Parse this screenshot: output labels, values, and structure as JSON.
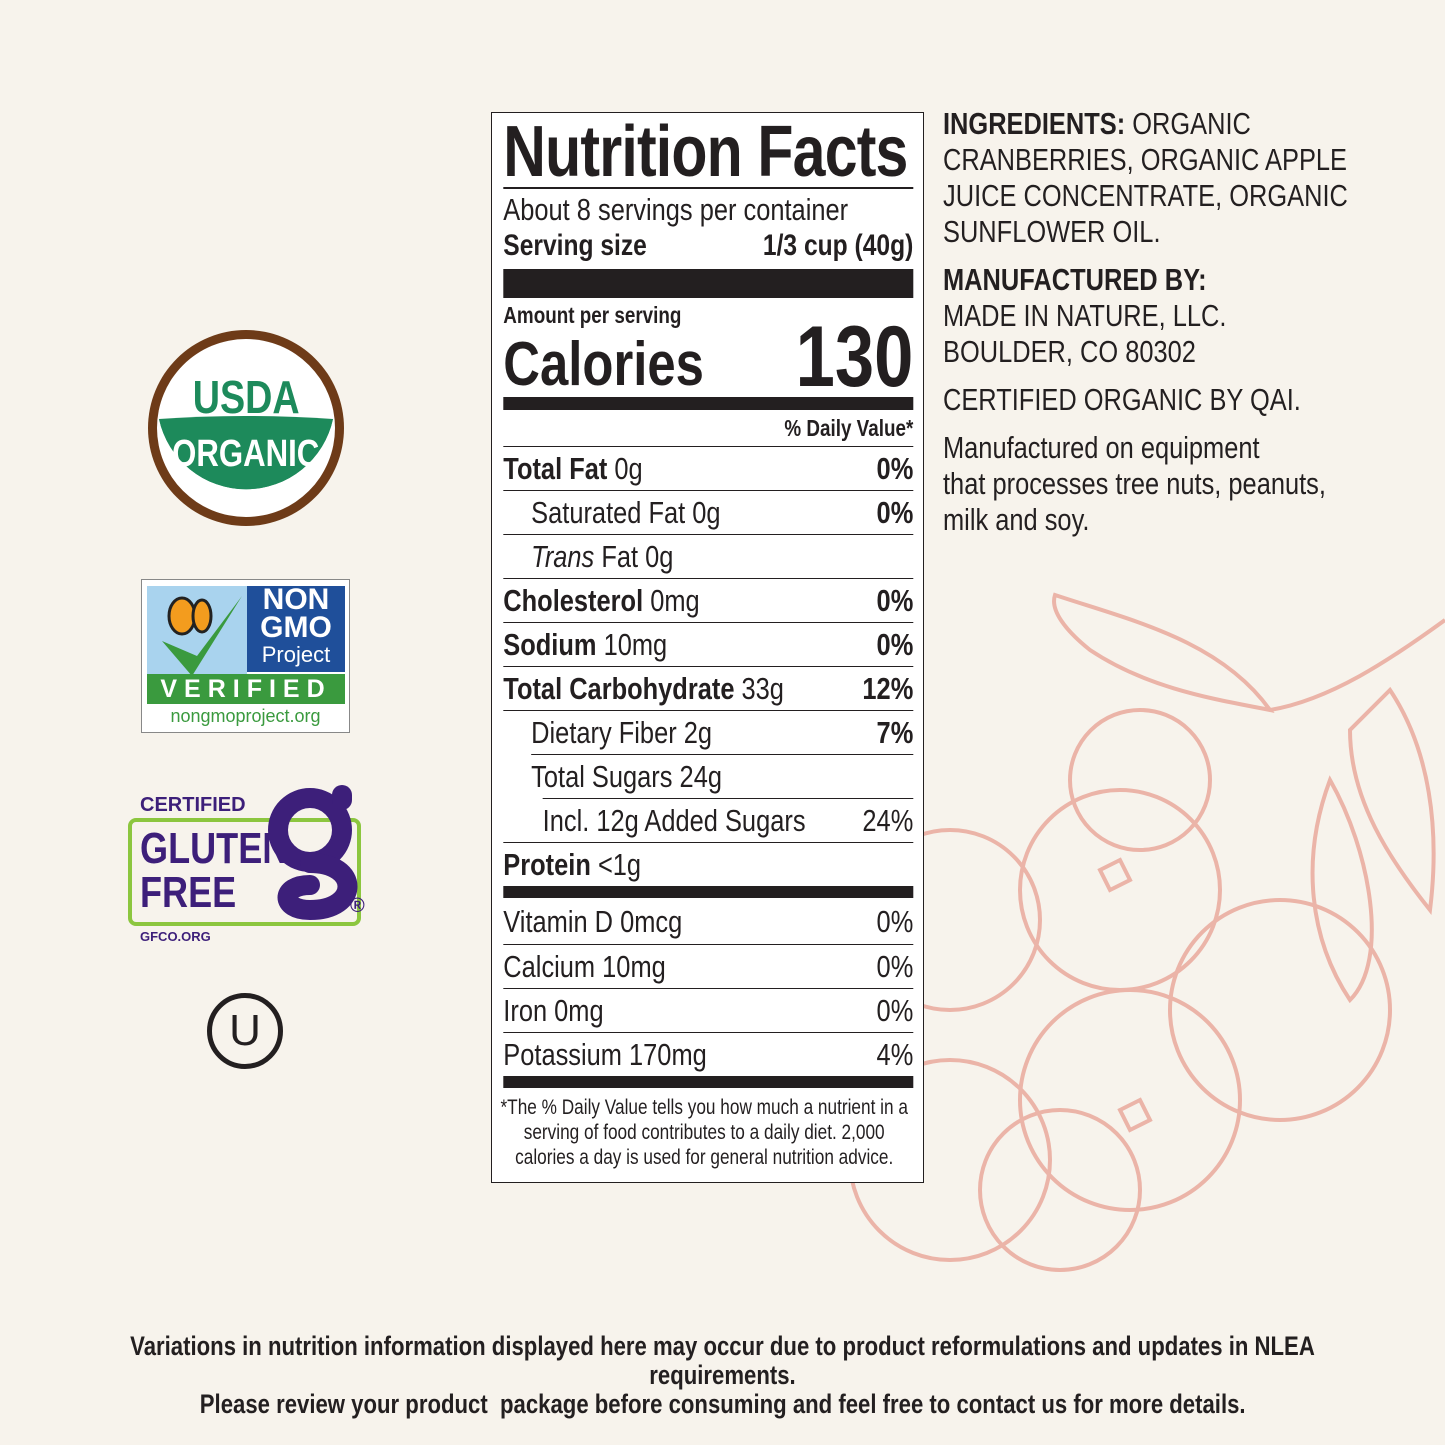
{
  "nutrition_facts": {
    "title": "Nutrition Facts",
    "servings_per_container": "About 8 servings per container",
    "serving_size_label": "Serving size",
    "serving_size_value": "1/3 cup (40g)",
    "amount_per_serving": "Amount per serving",
    "calories_label": "Calories",
    "calories_value": "130",
    "daily_value_header": "% Daily Value*",
    "nutrients": [
      {
        "name": "Total Fat",
        "amount": "0g",
        "dv": "0%"
      },
      {
        "name": "Saturated Fat",
        "amount": "0g",
        "dv": "0%"
      },
      {
        "name_italic": "Trans",
        "name": "Fat",
        "amount": "0g",
        "dv": ""
      },
      {
        "name": "Cholesterol",
        "amount": "0mg",
        "dv": "0%"
      },
      {
        "name": "Sodium",
        "amount": "10mg",
        "dv": "0%"
      },
      {
        "name": "Total Carbohydrate",
        "amount": "33g",
        "dv": "12%"
      },
      {
        "name": "Dietary Fiber",
        "amount": "2g",
        "dv": "7%"
      },
      {
        "name": "Total Sugars",
        "amount": "24g",
        "dv": ""
      },
      {
        "name": "Incl. 12g Added Sugars",
        "amount": "",
        "dv": "24%"
      },
      {
        "name": "Protein",
        "amount": "<1g",
        "dv": ""
      }
    ],
    "vitamins": [
      {
        "name": "Vitamin D 0mcg",
        "dv": "0%"
      },
      {
        "name": "Calcium 10mg",
        "dv": "0%"
      },
      {
        "name": "Iron 0mg",
        "dv": "0%"
      },
      {
        "name": "Potassium 170mg",
        "dv": "4%"
      }
    ],
    "footnote": "*The % Daily Value tells you how much a nutrient in a serving of food contributes to a daily diet. 2,000 calories a day is used for general nutrition advice."
  },
  "ingredients": {
    "label": "INGREDIENTS:",
    "text": "ORGANIC CRANBERRIES, ORGANIC APPLE JUICE CONCENTRATE, ORGANIC SUNFLOWER OIL.",
    "lines": [
      "ORGANIC",
      "CRANBERRIES, ORGANIC APPLE",
      "JUICE CONCENTRATE, ORGANIC",
      "SUNFLOWER OIL."
    ]
  },
  "manufacturer": {
    "label": "MANUFACTURED BY:",
    "lines": [
      "MADE IN NATURE, LLC.",
      "BOULDER, CO 80302"
    ]
  },
  "certification": "CERTIFIED ORGANIC BY QAI.",
  "allergen_lines": [
    "Manufactured on equipment",
    "that processes tree nuts, peanuts,",
    "milk and soy."
  ],
  "badges": {
    "usda": {
      "line1": "USDA",
      "line2": "ORGANIC"
    },
    "non_gmo": {
      "line1": "NON",
      "line2": "GMO",
      "line3": "Project",
      "verified": "VERIFIED",
      "url": "nongmoproject.org"
    },
    "gluten_free": {
      "certified": "CERTIFIED",
      "line1": "GLUTEN",
      "line2": "FREE",
      "url": "GFCO.ORG",
      "registered": "®"
    },
    "kosher": "U"
  },
  "footer": [
    "Variations in nutrition information displayed here may occur due to product reformulations and updates in NLEA requirements.",
    "Please review your product  package before consuming and feel free to contact us for more details."
  ],
  "colors": {
    "background": "#f7f3ec",
    "usda_green": "#1d8a5b",
    "usda_brown": "#6e3b18",
    "gf_purple": "#3d1f7a",
    "gf_green": "#8cc63f",
    "berry_sketch": "#ebb4a8"
  }
}
